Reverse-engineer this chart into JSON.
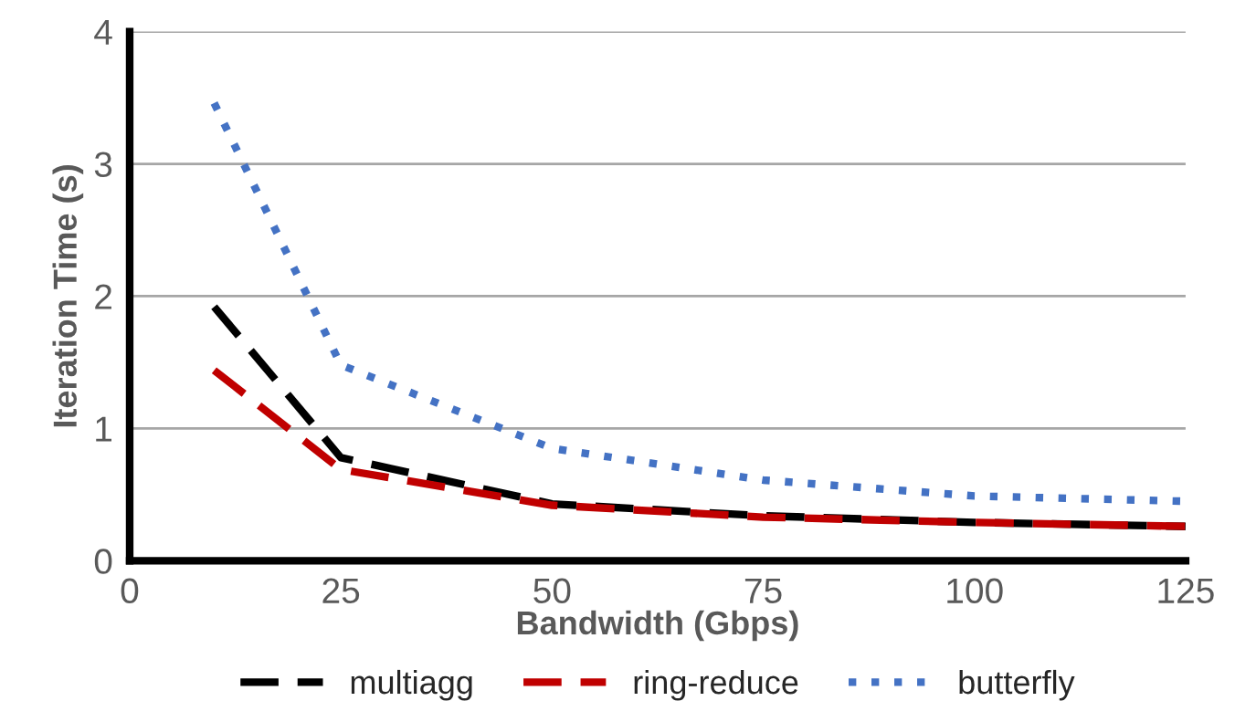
{
  "chart_data": {
    "type": "line",
    "xlabel": "Bandwidth (Gbps)",
    "ylabel": "Iteration Time (s)",
    "x": [
      10,
      25,
      50,
      75,
      100,
      125
    ],
    "series": [
      {
        "name": "multiagg",
        "color": "#000000",
        "line_style": "dashed",
        "values": [
          1.92,
          0.78,
          0.43,
          0.34,
          0.29,
          0.26
        ]
      },
      {
        "name": "ring-reduce",
        "color": "#c00000",
        "line_style": "dashed",
        "values": [
          1.44,
          0.69,
          0.42,
          0.33,
          0.29,
          0.26
        ]
      },
      {
        "name": "butterfly",
        "color": "#4472c4",
        "line_style": "dotted",
        "values": [
          3.46,
          1.48,
          0.85,
          0.61,
          0.49,
          0.45
        ]
      }
    ],
    "xlim": [
      0,
      125
    ],
    "xticks": [
      0,
      25,
      50,
      75,
      100,
      125
    ],
    "ylim": [
      0,
      4
    ],
    "yticks": [
      0,
      1,
      2,
      3,
      4
    ],
    "grid": "y",
    "legend": "bottom",
    "marker": "none"
  }
}
